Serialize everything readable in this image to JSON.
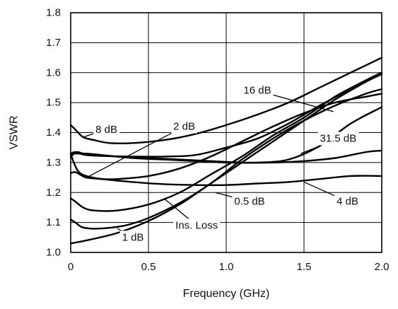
{
  "chart_data": {
    "type": "line",
    "title": "",
    "xlabel": "Frequency (GHz)",
    "ylabel": "VSWR",
    "xlim": [
      0,
      2.0
    ],
    "ylim": [
      1.0,
      1.8
    ],
    "xticks": [
      0,
      0.5,
      1.0,
      1.5,
      2.0
    ],
    "xtick_labels": [
      "0",
      "0.5",
      "1.0",
      "1.5",
      "2.0"
    ],
    "yticks": [
      1.0,
      1.1,
      1.2,
      1.3,
      1.4,
      1.5,
      1.6,
      1.7,
      1.8
    ],
    "ytick_labels": [
      "1.0",
      "1.1",
      "1.2",
      "1.3",
      "1.4",
      "1.5",
      "1.6",
      "1.7",
      "1.8"
    ],
    "grid": true,
    "series": [
      {
        "name": "8 dB",
        "x": [
          0,
          0.03,
          0.08,
          0.15,
          0.25,
          0.4,
          0.6,
          0.8,
          1.0,
          1.2,
          1.4,
          1.6,
          1.8,
          2.0
        ],
        "y": [
          1.425,
          1.41,
          1.385,
          1.375,
          1.365,
          1.365,
          1.375,
          1.395,
          1.425,
          1.46,
          1.5,
          1.55,
          1.6,
          1.65
        ]
      },
      {
        "name": "2 dB",
        "x": [
          0,
          0.03,
          0.06,
          0.1,
          0.2,
          0.4,
          0.6,
          0.8,
          1.0,
          1.2,
          1.4,
          1.6,
          1.8,
          2.0
        ],
        "y": [
          1.33,
          1.335,
          1.33,
          1.325,
          1.322,
          1.32,
          1.32,
          1.325,
          1.35,
          1.38,
          1.43,
          1.49,
          1.545,
          1.6
        ]
      },
      {
        "name": "16 dB",
        "x": [
          0,
          0.04,
          0.1,
          0.2,
          0.4,
          0.6,
          0.8,
          1.0,
          1.2,
          1.4,
          1.6,
          1.8,
          2.0
        ],
        "y": [
          1.33,
          1.33,
          1.33,
          1.325,
          1.315,
          1.31,
          1.305,
          1.3,
          1.3,
          1.31,
          1.355,
          1.43,
          1.485
        ]
      },
      {
        "name": "31.5 dB",
        "x": [
          0,
          0.04,
          0.08,
          0.15,
          0.3,
          0.5,
          0.7,
          0.9,
          1.1,
          1.3,
          1.5,
          1.7,
          1.9,
          2.0
        ],
        "y": [
          1.32,
          1.335,
          1.33,
          1.325,
          1.32,
          1.315,
          1.31,
          1.305,
          1.3,
          1.3,
          1.305,
          1.315,
          1.335,
          1.34
        ]
      },
      {
        "name": "4 dB",
        "x": [
          0,
          0.02,
          0.05,
          0.1,
          0.2,
          0.4,
          0.6,
          0.8,
          1.0,
          1.2,
          1.4,
          1.6,
          1.8,
          2.0
        ],
        "y": [
          1.33,
          1.3,
          1.27,
          1.255,
          1.245,
          1.235,
          1.228,
          1.225,
          1.225,
          1.23,
          1.235,
          1.245,
          1.255,
          1.255
        ]
      },
      {
        "name": "0.5 dB",
        "x": [
          0,
          0.03,
          0.06,
          0.1,
          0.2,
          0.3,
          0.5,
          0.7,
          0.9,
          1.1,
          1.3,
          1.5,
          1.7,
          1.9,
          2.0
        ],
        "y": [
          1.265,
          1.268,
          1.26,
          1.25,
          1.245,
          1.245,
          1.255,
          1.28,
          1.32,
          1.37,
          1.42,
          1.465,
          1.5,
          1.52,
          1.53
        ]
      },
      {
        "name": "Ins. Loss",
        "x": [
          0,
          0.03,
          0.08,
          0.15,
          0.3,
          0.5,
          0.7,
          0.9,
          1.1,
          1.3,
          1.5,
          1.7,
          1.9,
          2.0
        ],
        "y": [
          1.18,
          1.17,
          1.15,
          1.14,
          1.14,
          1.16,
          1.2,
          1.26,
          1.32,
          1.39,
          1.45,
          1.52,
          1.575,
          1.6
        ]
      },
      {
        "name": "1 dB",
        "x": [
          0,
          0.03,
          0.07,
          0.12,
          0.2,
          0.35,
          0.5,
          0.7,
          0.9,
          1.1,
          1.3,
          1.5,
          1.7,
          1.9,
          2.0
        ],
        "y": [
          1.11,
          1.1,
          1.085,
          1.08,
          1.08,
          1.09,
          1.115,
          1.165,
          1.23,
          1.31,
          1.38,
          1.44,
          1.49,
          1.53,
          1.545
        ]
      },
      {
        "name": "",
        "x": [
          0,
          0.1,
          0.3,
          0.5,
          0.7,
          0.9,
          1.1,
          1.3,
          1.5,
          1.7,
          1.9,
          2.0
        ],
        "y": [
          1.03,
          1.04,
          1.065,
          1.105,
          1.16,
          1.23,
          1.3,
          1.37,
          1.44,
          1.51,
          1.57,
          1.595
        ]
      }
    ],
    "annotations": [
      {
        "text": "8 dB",
        "label_at": [
          0.23,
          1.41
        ],
        "point": [
          0.08,
          1.385
        ]
      },
      {
        "text": "2 dB",
        "label_at": [
          0.73,
          1.42
        ],
        "point": [
          0.12,
          1.255
        ]
      },
      {
        "text": "16 dB",
        "label_at": [
          1.2,
          1.54
        ],
        "point": [
          1.69,
          1.47
        ]
      },
      {
        "text": "31.5 dB",
        "label_at": [
          1.72,
          1.38
        ],
        "point": [
          1.48,
          1.33
        ]
      },
      {
        "text": "4 dB",
        "label_at": [
          1.78,
          1.17
        ],
        "point": [
          1.5,
          1.235
        ]
      },
      {
        "text": "0.5 dB",
        "label_at": [
          1.15,
          1.17
        ],
        "point": [
          0.93,
          1.2
        ]
      },
      {
        "text": "Ins. Loss",
        "label_at": [
          0.81,
          1.09
        ],
        "point": [
          0.6,
          1.18
        ]
      },
      {
        "text": "1 dB",
        "label_at": [
          0.4,
          1.05
        ],
        "point": [
          0.3,
          1.08
        ]
      }
    ]
  }
}
